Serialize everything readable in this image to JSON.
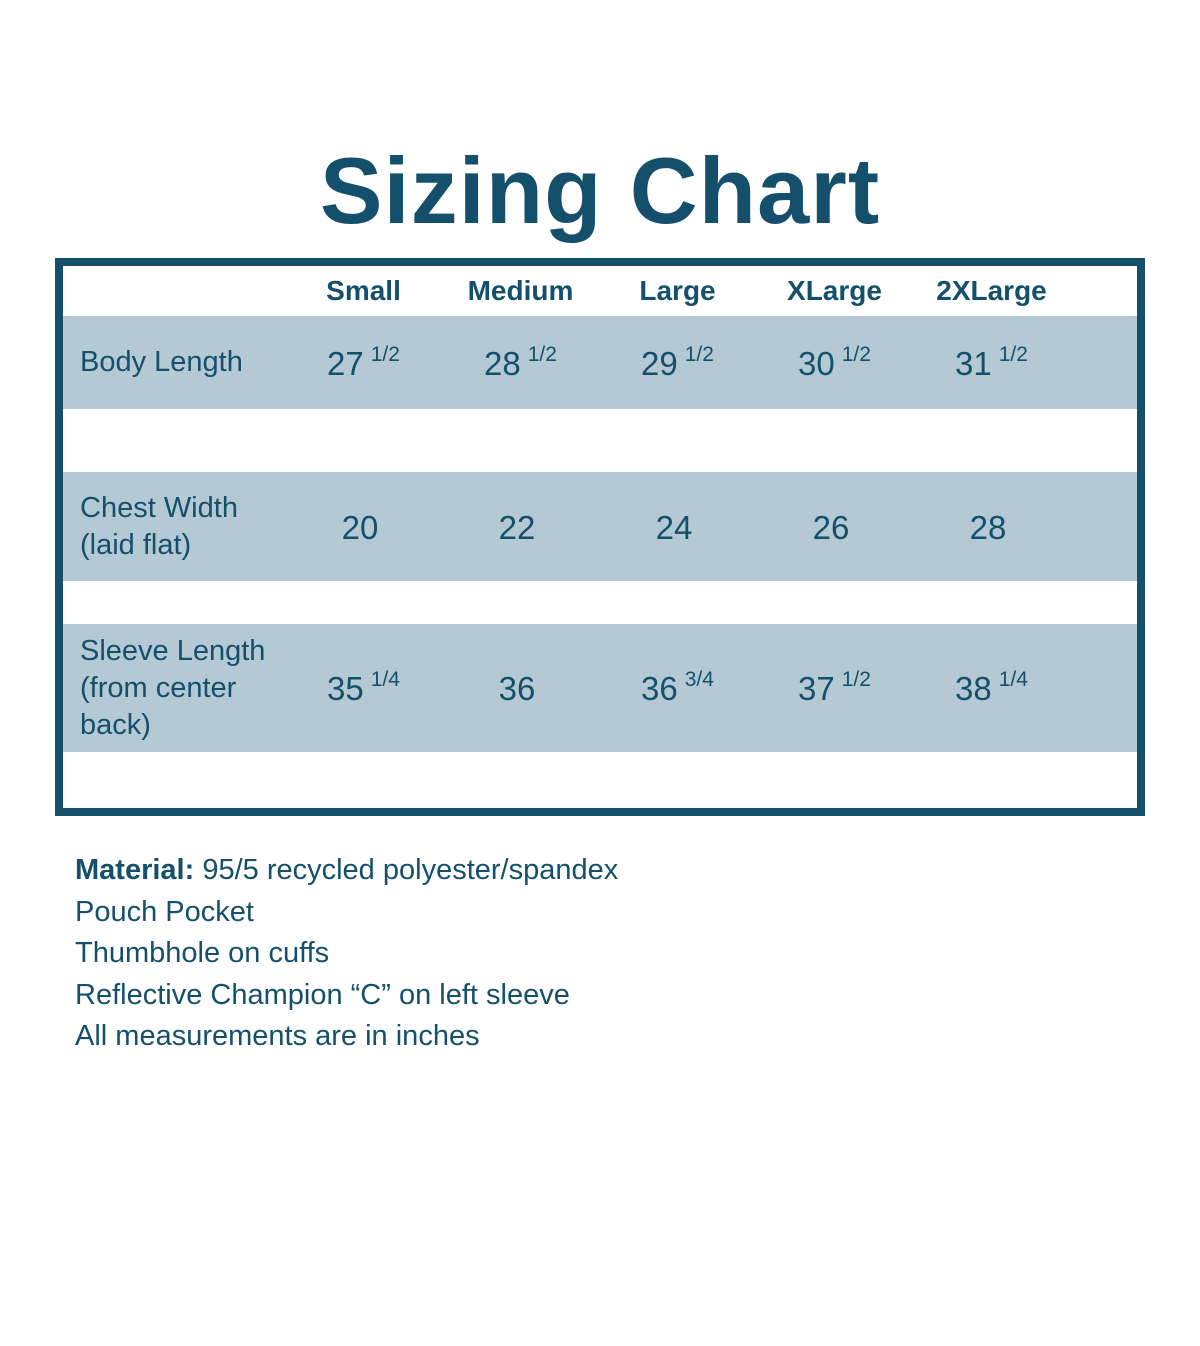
{
  "colors": {
    "accent": "#14506c",
    "stripe": "#b4c9d3",
    "page_bg": "#ffffff"
  },
  "title": "Sizing Chart",
  "table": {
    "size_headers": [
      "Small",
      "Medium",
      "Large",
      "XLarge",
      "2XLarge"
    ],
    "rows": [
      {
        "label": "Body Length",
        "values": [
          {
            "num": "27",
            "frac": "1/2"
          },
          {
            "num": "28",
            "frac": "1/2"
          },
          {
            "num": "29",
            "frac": "1/2"
          },
          {
            "num": "30",
            "frac": "1/2"
          },
          {
            "num": "31",
            "frac": "1/2"
          }
        ]
      },
      {
        "label": "Chest Width (laid flat)",
        "values": [
          {
            "num": "20",
            "frac": ""
          },
          {
            "num": "22",
            "frac": ""
          },
          {
            "num": "24",
            "frac": ""
          },
          {
            "num": "26",
            "frac": ""
          },
          {
            "num": "28",
            "frac": ""
          }
        ]
      },
      {
        "label": "Sleeve Length (from center back)",
        "values": [
          {
            "num": "35",
            "frac": "1/4"
          },
          {
            "num": "36",
            "frac": ""
          },
          {
            "num": "36",
            "frac": "3/4"
          },
          {
            "num": "37",
            "frac": "1/2"
          },
          {
            "num": "38",
            "frac": "1/4"
          }
        ]
      }
    ]
  },
  "notes": {
    "material_label": "Material:",
    "material_value": "95/5 recycled polyester/spandex",
    "lines": [
      "Pouch Pocket",
      "Thumbhole on cuffs",
      "Reflective Champion “C” on left sleeve",
      "All measurements are in inches"
    ]
  }
}
